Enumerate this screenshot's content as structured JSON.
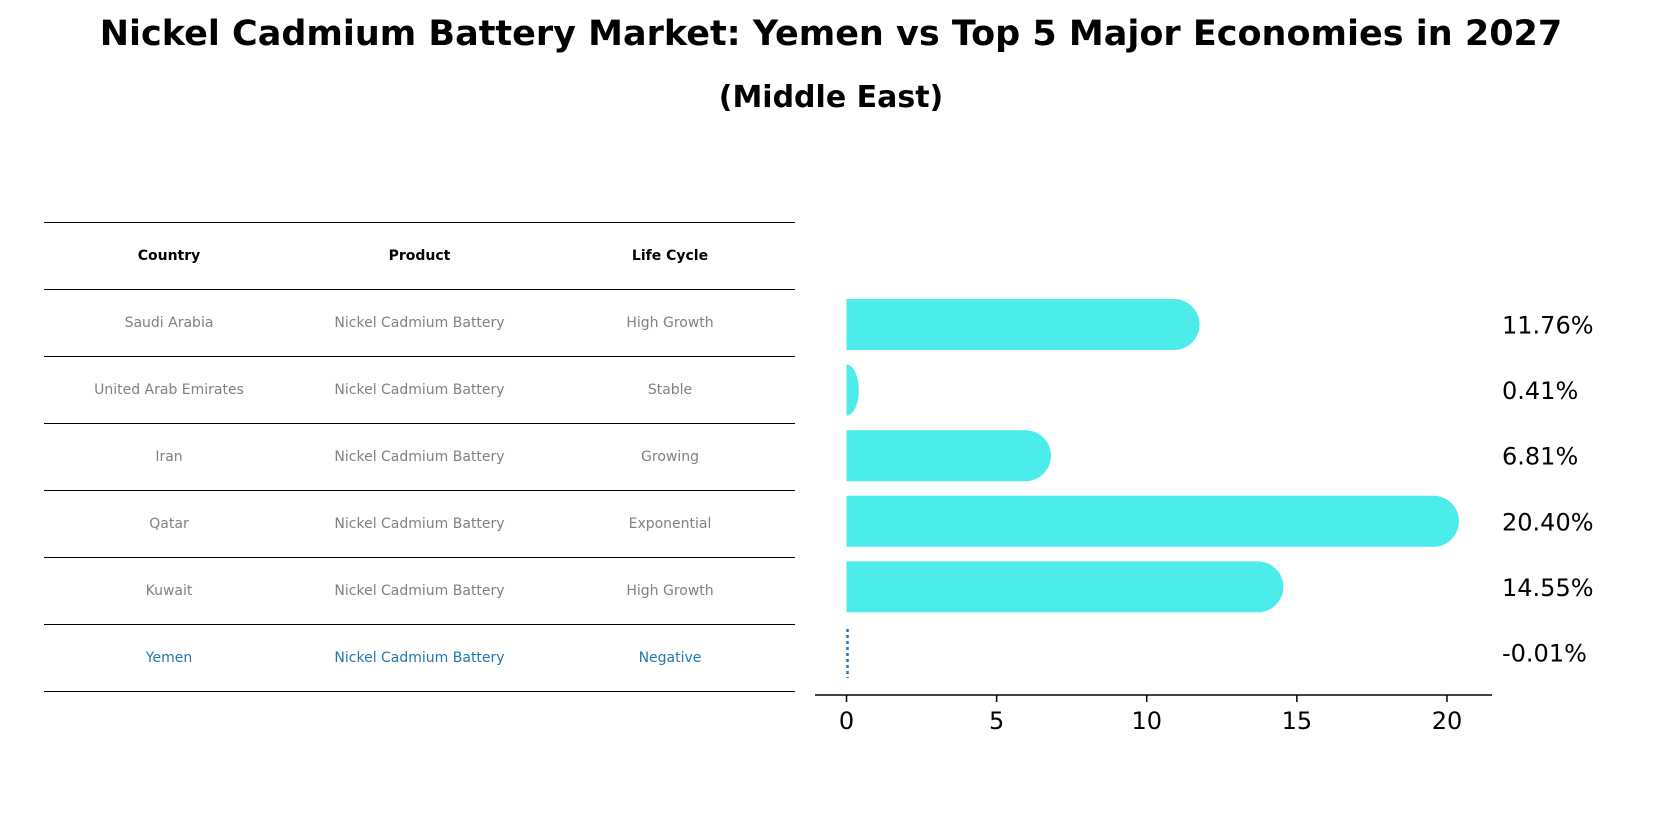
{
  "header": {
    "title": "Nickel Cadmium Battery Market: Yemen vs Top 5 Major Economies in 2027",
    "subtitle": "(Middle East)"
  },
  "table": {
    "columns": [
      "Country",
      "Product",
      "Life Cycle"
    ],
    "rows": [
      [
        "Saudi Arabia",
        "Nickel Cadmium Battery",
        "High Growth"
      ],
      [
        "United Arab Emirates",
        "Nickel Cadmium Battery",
        "Stable"
      ],
      [
        "Iran",
        "Nickel Cadmium Battery",
        "Growing"
      ],
      [
        "Qatar",
        "Nickel Cadmium Battery",
        "Exponential"
      ],
      [
        "Kuwait",
        "Nickel Cadmium Battery",
        "High Growth"
      ],
      [
        "Yemen",
        "Nickel Cadmium Battery",
        "Negative"
      ]
    ],
    "highlight_row": 5
  },
  "chart_data": {
    "type": "bar",
    "orientation": "horizontal",
    "categories": [
      "Saudi Arabia",
      "United Arab Emirates",
      "Iran",
      "Qatar",
      "Kuwait",
      "Yemen"
    ],
    "values": [
      11.76,
      0.41,
      6.81,
      20.4,
      14.55,
      -0.01
    ],
    "value_labels": [
      "11.76%",
      "0.41%",
      "6.81%",
      "20.40%",
      "14.55%",
      "-0.01%"
    ],
    "xlim": [
      -1.05,
      21.5
    ],
    "xticks": [
      0,
      5,
      10,
      15,
      20
    ],
    "xtick_labels": [
      "0",
      "5",
      "10",
      "15",
      "20"
    ],
    "title": "Nickel Cadmium Battery Market: Yemen vs Top 5 Major Economies in 2027",
    "subtitle": "(Middle East)",
    "xlabel": "",
    "ylabel": "",
    "grid": false,
    "colors": {
      "bar": "#4cecea",
      "highlight": "#1f77b4",
      "table_text": "#808080"
    }
  }
}
